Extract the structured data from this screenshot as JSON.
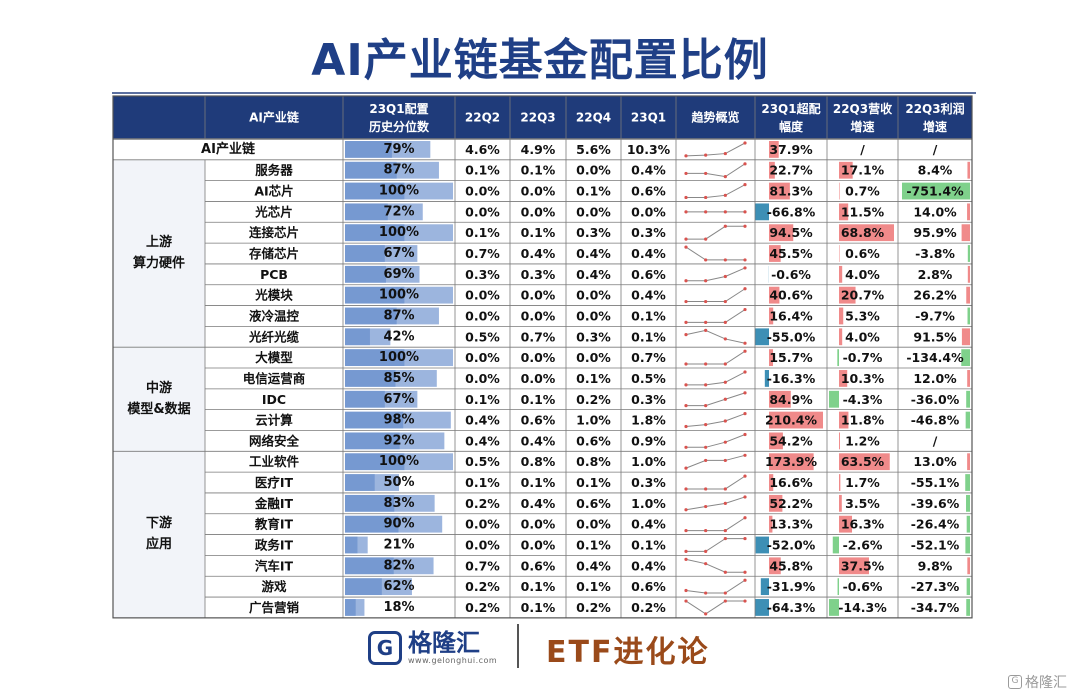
{
  "title": "AI产业链基金配置比例",
  "chart_data": {
    "type": "table",
    "headers": {
      "chain": "AI产业链",
      "pct_line1": "23Q1配置",
      "pct_line2": "历史分位数",
      "q22q2": "22Q2",
      "q22q3": "22Q3",
      "q22q4": "22Q4",
      "q23q1": "23Q1",
      "trend": "趋势概览",
      "over_line1": "23Q1超配",
      "over_line2": "幅度",
      "rev_line1": "22Q3营收",
      "rev_line2": "增速",
      "profit_line1": "22Q3利润",
      "profit_line2": "增速"
    },
    "groups": [
      {
        "label_line1": "上游",
        "label_line2": "算力硬件",
        "start": 1,
        "end": 9
      },
      {
        "label_line1": "中游",
        "label_line2": "模型&数据",
        "start": 10,
        "end": 14
      },
      {
        "label_line1": "下游",
        "label_line2": "应用",
        "start": 15,
        "end": 22
      }
    ],
    "rows": [
      {
        "name": "AI产业链",
        "pct": "79%",
        "pctv": 79,
        "q": [
          "4.6%",
          "4.9%",
          "5.6%",
          "10.3%"
        ],
        "qv": [
          4.6,
          4.9,
          5.6,
          10.3
        ],
        "over": "37.9%",
        "overv": 37.9,
        "rev": "/",
        "revv": null,
        "profit": "/",
        "profitv": null
      },
      {
        "name": "服务器",
        "pct": "87%",
        "pctv": 87,
        "q": [
          "0.1%",
          "0.1%",
          "0.0%",
          "0.4%"
        ],
        "qv": [
          0.1,
          0.1,
          0.0,
          0.4
        ],
        "over": "22.7%",
        "overv": 22.7,
        "rev": "17.1%",
        "revv": 17.1,
        "profit": "8.4%",
        "profitv": 8.4
      },
      {
        "name": "AI芯片",
        "pct": "100%",
        "pctv": 100,
        "q": [
          "0.0%",
          "0.0%",
          "0.1%",
          "0.6%"
        ],
        "qv": [
          0.0,
          0.0,
          0.1,
          0.6
        ],
        "over": "81.3%",
        "overv": 81.3,
        "rev": "0.7%",
        "revv": 0.7,
        "profit": "-751.4%",
        "profitv": -751.4
      },
      {
        "name": "光芯片",
        "pct": "72%",
        "pctv": 72,
        "q": [
          "0.0%",
          "0.0%",
          "0.0%",
          "0.0%"
        ],
        "qv": [
          0.0,
          0.0,
          0.0,
          0.0
        ],
        "over": "-66.8%",
        "overv": -66.8,
        "rev": "11.5%",
        "revv": 11.5,
        "profit": "14.0%",
        "profitv": 14.0
      },
      {
        "name": "连接芯片",
        "pct": "100%",
        "pctv": 100,
        "q": [
          "0.1%",
          "0.1%",
          "0.3%",
          "0.3%"
        ],
        "qv": [
          0.1,
          0.1,
          0.3,
          0.3
        ],
        "over": "94.5%",
        "overv": 94.5,
        "rev": "68.8%",
        "revv": 68.8,
        "profit": "95.9%",
        "profitv": 95.9
      },
      {
        "name": "存储芯片",
        "pct": "67%",
        "pctv": 67,
        "q": [
          "0.7%",
          "0.4%",
          "0.4%",
          "0.4%"
        ],
        "qv": [
          0.7,
          0.4,
          0.4,
          0.4
        ],
        "over": "45.5%",
        "overv": 45.5,
        "rev": "0.6%",
        "revv": 0.6,
        "profit": "-3.8%",
        "profitv": -3.8
      },
      {
        "name": "PCB",
        "pct": "69%",
        "pctv": 69,
        "q": [
          "0.3%",
          "0.3%",
          "0.4%",
          "0.6%"
        ],
        "qv": [
          0.3,
          0.3,
          0.4,
          0.6
        ],
        "over": "-0.6%",
        "overv": -0.6,
        "rev": "4.0%",
        "revv": 4.0,
        "profit": "2.8%",
        "profitv": 2.8
      },
      {
        "name": "光模块",
        "pct": "100%",
        "pctv": 100,
        "q": [
          "0.0%",
          "0.0%",
          "0.0%",
          "0.4%"
        ],
        "qv": [
          0.0,
          0.0,
          0.0,
          0.4
        ],
        "over": "40.6%",
        "overv": 40.6,
        "rev": "20.7%",
        "revv": 20.7,
        "profit": "26.2%",
        "profitv": 26.2
      },
      {
        "name": "液冷温控",
        "pct": "87%",
        "pctv": 87,
        "q": [
          "0.0%",
          "0.0%",
          "0.0%",
          "0.1%"
        ],
        "qv": [
          0.0,
          0.0,
          0.0,
          0.1
        ],
        "over": "16.4%",
        "overv": 16.4,
        "rev": "5.3%",
        "revv": 5.3,
        "profit": "-9.7%",
        "profitv": -9.7
      },
      {
        "name": "光纤光缆",
        "pct": "42%",
        "pctv": 42,
        "q": [
          "0.5%",
          "0.7%",
          "0.3%",
          "0.1%"
        ],
        "qv": [
          0.5,
          0.7,
          0.3,
          0.1
        ],
        "over": "-55.0%",
        "overv": -55.0,
        "rev": "4.0%",
        "revv": 4.0,
        "profit": "91.5%",
        "profitv": 91.5
      },
      {
        "name": "大模型",
        "pct": "100%",
        "pctv": 100,
        "q": [
          "0.0%",
          "0.0%",
          "0.0%",
          "0.7%"
        ],
        "qv": [
          0.0,
          0.0,
          0.0,
          0.7
        ],
        "over": "15.7%",
        "overv": 15.7,
        "rev": "-0.7%",
        "revv": -0.7,
        "profit": "-134.4%",
        "profitv": -134.4
      },
      {
        "name": "电信运营商",
        "pct": "85%",
        "pctv": 85,
        "q": [
          "0.0%",
          "0.0%",
          "0.1%",
          "0.5%"
        ],
        "qv": [
          0.0,
          0.0,
          0.1,
          0.5
        ],
        "over": "-16.3%",
        "overv": -16.3,
        "rev": "10.3%",
        "revv": 10.3,
        "profit": "12.0%",
        "profitv": 12.0
      },
      {
        "name": "IDC",
        "pct": "67%",
        "pctv": 67,
        "q": [
          "0.1%",
          "0.1%",
          "0.2%",
          "0.3%"
        ],
        "qv": [
          0.1,
          0.1,
          0.2,
          0.3
        ],
        "over": "84.9%",
        "overv": 84.9,
        "rev": "-4.3%",
        "revv": -4.3,
        "profit": "-36.0%",
        "profitv": -36.0
      },
      {
        "name": "云计算",
        "pct": "98%",
        "pctv": 98,
        "q": [
          "0.4%",
          "0.6%",
          "1.0%",
          "1.8%"
        ],
        "qv": [
          0.4,
          0.6,
          1.0,
          1.8
        ],
        "over": "210.4%",
        "overv": 210.4,
        "rev": "11.8%",
        "revv": 11.8,
        "profit": "-46.8%",
        "profitv": -46.8
      },
      {
        "name": "网络安全",
        "pct": "92%",
        "pctv": 92,
        "q": [
          "0.4%",
          "0.4%",
          "0.6%",
          "0.9%"
        ],
        "qv": [
          0.4,
          0.4,
          0.6,
          0.9
        ],
        "over": "54.2%",
        "overv": 54.2,
        "rev": "1.2%",
        "revv": 1.2,
        "profit": "/",
        "profitv": null
      },
      {
        "name": "工业软件",
        "pct": "100%",
        "pctv": 100,
        "q": [
          "0.5%",
          "0.8%",
          "0.8%",
          "1.0%"
        ],
        "qv": [
          0.5,
          0.8,
          0.8,
          1.0
        ],
        "over": "173.9%",
        "overv": 173.9,
        "rev": "63.5%",
        "revv": 63.5,
        "profit": "13.0%",
        "profitv": 13.0
      },
      {
        "name": "医疗IT",
        "pct": "50%",
        "pctv": 50,
        "q": [
          "0.1%",
          "0.1%",
          "0.1%",
          "0.3%"
        ],
        "qv": [
          0.1,
          0.1,
          0.1,
          0.3
        ],
        "over": "16.6%",
        "overv": 16.6,
        "rev": "1.7%",
        "revv": 1.7,
        "profit": "-55.1%",
        "profitv": -55.1
      },
      {
        "name": "金融IT",
        "pct": "83%",
        "pctv": 83,
        "q": [
          "0.2%",
          "0.4%",
          "0.6%",
          "1.0%"
        ],
        "qv": [
          0.2,
          0.4,
          0.6,
          1.0
        ],
        "over": "52.2%",
        "overv": 52.2,
        "rev": "3.5%",
        "revv": 3.5,
        "profit": "-39.6%",
        "profitv": -39.6
      },
      {
        "name": "教育IT",
        "pct": "90%",
        "pctv": 90,
        "q": [
          "0.0%",
          "0.0%",
          "0.0%",
          "0.4%"
        ],
        "qv": [
          0.0,
          0.0,
          0.0,
          0.4
        ],
        "over": "13.3%",
        "overv": 13.3,
        "rev": "16.3%",
        "revv": 16.3,
        "profit": "-26.4%",
        "profitv": -26.4
      },
      {
        "name": "政务IT",
        "pct": "21%",
        "pctv": 21,
        "q": [
          "0.0%",
          "0.0%",
          "0.1%",
          "0.1%"
        ],
        "qv": [
          0.0,
          0.0,
          0.1,
          0.1
        ],
        "over": "-52.0%",
        "overv": -52.0,
        "rev": "-2.6%",
        "revv": -2.6,
        "profit": "-52.1%",
        "profitv": -52.1
      },
      {
        "name": "汽车IT",
        "pct": "82%",
        "pctv": 82,
        "q": [
          "0.7%",
          "0.6%",
          "0.4%",
          "0.4%"
        ],
        "qv": [
          0.7,
          0.6,
          0.4,
          0.4
        ],
        "over": "45.8%",
        "overv": 45.8,
        "rev": "37.5%",
        "revv": 37.5,
        "profit": "9.8%",
        "profitv": 9.8
      },
      {
        "name": "游戏",
        "pct": "62%",
        "pctv": 62,
        "q": [
          "0.2%",
          "0.1%",
          "0.1%",
          "0.6%"
        ],
        "qv": [
          0.2,
          0.1,
          0.1,
          0.6
        ],
        "over": "-31.9%",
        "overv": -31.9,
        "rev": "-0.6%",
        "revv": -0.6,
        "profit": "-27.3%",
        "profitv": -27.3
      },
      {
        "name": "广告营销",
        "pct": "18%",
        "pctv": 18,
        "q": [
          "0.2%",
          "0.1%",
          "0.2%",
          "0.2%"
        ],
        "qv": [
          0.2,
          0.1,
          0.2,
          0.2
        ],
        "over": "-64.3%",
        "overv": -64.3,
        "rev": "-14.3%",
        "revv": -14.3,
        "profit": "-34.7%",
        "profitv": -34.7
      }
    ]
  },
  "footer": {
    "logo_glyph": "G",
    "logo_cn": "格隆汇",
    "logo_url": "www.gelonghui.com",
    "etf": "ETF进化论",
    "watermark_glyph": "G",
    "watermark": "格隆汇"
  },
  "colors": {
    "title": "#1f3f86",
    "header_bg": "#1f3b7a",
    "header_text": "#ffffff",
    "group_bg": "#f2f4f9",
    "pct_bar": "#4a78c2",
    "over_pos": "#f08a8a",
    "over_neg": "#3d8fb5",
    "rev_pos": "#f08a8a",
    "rev_neg": "#7fd18b",
    "profit_pos": "#f08a8a",
    "profit_neg": "#7fd18b",
    "spark": "#d9534f"
  }
}
